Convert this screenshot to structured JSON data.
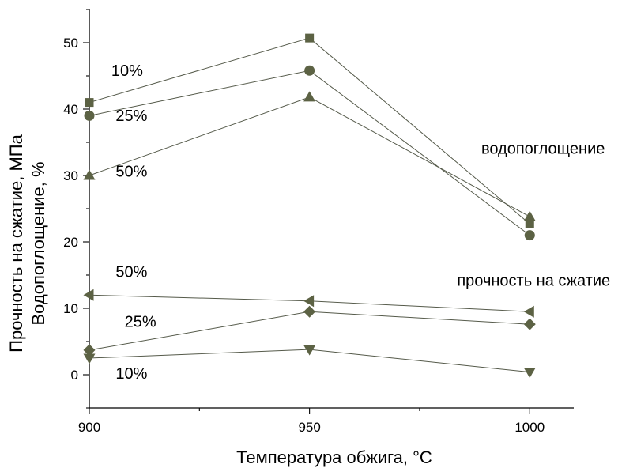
{
  "chart_data": {
    "type": "line",
    "x": [
      900,
      950,
      1000
    ],
    "xlim": [
      900,
      1010
    ],
    "ylim": [
      -5,
      55
    ],
    "xticks": [
      900,
      950,
      1000
    ],
    "yticks": [
      0,
      10,
      20,
      30,
      40,
      50
    ],
    "xlabel": "Температура обжига, °C",
    "ylabel_lines": [
      "Прочность на сжатие, МПа",
      "Водопоглощение, %"
    ],
    "grid": false,
    "colors": {
      "line": "#555a4a",
      "marker": "#5c6244"
    },
    "series": [
      {
        "marker": "square",
        "values": [
          41,
          50.7,
          22.7
        ]
      },
      {
        "marker": "circle",
        "values": [
          39,
          45.8,
          21
        ]
      },
      {
        "marker": "triangle-up",
        "values": [
          30,
          41.8,
          23.8
        ]
      },
      {
        "marker": "triangle-left",
        "values": [
          12,
          11.1,
          9.5
        ]
      },
      {
        "marker": "diamond",
        "values": [
          3.7,
          9.5,
          7.6
        ]
      },
      {
        "marker": "triangle-down",
        "values": [
          2.5,
          3.8,
          0.4
        ]
      }
    ],
    "annotations": [
      {
        "text": "10%",
        "x": 905,
        "y": 45
      },
      {
        "text": "25%",
        "x": 906,
        "y": 38.2
      },
      {
        "text": "50%",
        "x": 906,
        "y": 29.8
      },
      {
        "text": "водопоглощение",
        "x": 989,
        "y": 33.3
      },
      {
        "text": "50%",
        "x": 906,
        "y": 14.7
      },
      {
        "text": "прочность на сжатие",
        "x": 983.5,
        "y": 13.4
      },
      {
        "text": "25%",
        "x": 908,
        "y": 7.2
      },
      {
        "text": "10%",
        "x": 906,
        "y": -0.6
      }
    ]
  }
}
